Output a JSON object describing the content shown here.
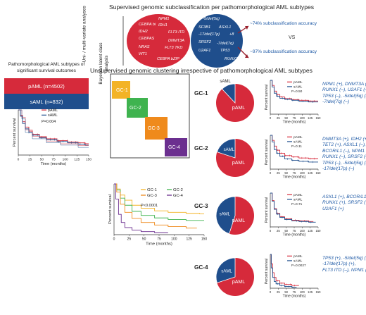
{
  "colors": {
    "red": "#d62a3b",
    "blue": "#1f4e8c",
    "gc1": "#f3b326",
    "gc2": "#3fb34f",
    "gc3": "#ef8a1c",
    "gc4": "#6b2f8f",
    "arrow": "#9a1f2b"
  },
  "header": {
    "title": "Supervised genomic subclassification per pathomorphological AML subtypes",
    "analysis_label": "Uni- / multi-variate analyses",
    "red_circle_genes": [
      "NPM1",
      "CEBPA bi",
      "IDH1",
      "IDH2",
      "FLT3 ITD",
      "CEBPAS",
      "DNMT3A",
      "NRAS",
      "FLT3 TKD",
      "WT1",
      "CEBPA bZIP"
    ],
    "blue_circle_genes": [
      "-5/del(5q)",
      "SF3B1",
      "ASXL1",
      "-17/del(17p)",
      "+8",
      "SRSF2",
      "-7/del(7q)",
      "U2AF1",
      "TP53",
      "RUNX1"
    ],
    "acc_top": "~74%  subclassification accuracy",
    "vs": "VS",
    "acc_bottom": "~97%  subclassification accuracy"
  },
  "left_panel": {
    "caption": "Pathomorphological AML subtypes of significant survival outcomes",
    "paml_box": "pAML (n=4502)",
    "saml_box": "sAML (n=832)",
    "km": {
      "ylabel": "Percent survival",
      "xlabel": "Time (months)",
      "legend": [
        "pAML",
        "sAML"
      ],
      "pvalue": "P=0.004"
    }
  },
  "unsupervised_title": "Unsupervised genomic clustering irrespective of pathomorphological AML subtypes",
  "bayes_label": "Bayesian latent class analysis",
  "clusters": [
    "GC-1",
    "GC-2",
    "GC-3",
    "GC-4"
  ],
  "all_gc_km": {
    "ylabel": "Percent survival",
    "xlabel": "Time (months)",
    "legend": [
      "GC-1",
      "GC-2",
      "GC-3",
      "GC-4"
    ],
    "pvalue": "P<0.0001"
  },
  "gc_rows": [
    {
      "label": "GC-1",
      "pie_paml": "pAML",
      "pie_saml": "sAML",
      "saml_frac": 0.12,
      "legend": [
        "pAML",
        "sAML"
      ],
      "pvalue": "P=0.50",
      "xlabel": "Time (months)",
      "ylabel": "Percent survival",
      "genes": [
        "NPM1 (+), DNMT3A (+),",
        "RUNX1 (–), U2AF1 (–),",
        "TP53 (–), -5/del(5q) (–),",
        "-7/del(7q) (–)"
      ]
    },
    {
      "label": "GC-2",
      "pie_paml": "pAML",
      "pie_saml": "sAML",
      "saml_frac": 0.2,
      "legend": [
        "pAML",
        "sAML"
      ],
      "pvalue": "P=0.11",
      "xlabel": "Time (months)",
      "ylabel": "Percent survival",
      "genes": [
        "DNMT3A (+), IDH2 (+),",
        "TET2 (+), ASXL1 (–),",
        "BCOR/L1 (–), NPM1 (–),",
        "RUNX1 (–), SRSF2 (–),",
        "TP53 (–), -5/del(5q) (–),",
        "-17/del(17p) (–)"
      ]
    },
    {
      "label": "GC-3",
      "pie_paml": "pAML",
      "pie_saml": "sAML",
      "saml_frac": 0.45,
      "legend": [
        "pAML",
        "sAML"
      ],
      "pvalue": "P=0.71",
      "xlabel": "Time (months)",
      "ylabel": "Percent survival",
      "genes": [
        "ASXL1 (+), BCOR/L1 (+),",
        "RUNX1 (+), SRSF2 (+),",
        "U2AF1 (+)"
      ]
    },
    {
      "label": "GC-4",
      "pie_paml": "pAML",
      "pie_saml": "sAML",
      "saml_frac": 0.3,
      "legend": [
        "pAML",
        "sAML"
      ],
      "pvalue": "P=0.0027",
      "xlabel": "Time (months)",
      "ylabel": "Percent survival",
      "genes": [
        "TP53 (+), -5/del(5q) (+),",
        "-17/del(17p) (+),",
        "FLT3 ITD (–), NPM1 (–)"
      ]
    }
  ],
  "axis_ticks": {
    "time": [
      "0",
      "25",
      "50",
      "75",
      "100",
      "125",
      "150"
    ]
  }
}
